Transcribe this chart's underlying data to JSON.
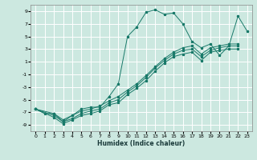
{
  "xlabel": "Humidex (Indice chaleur)",
  "background_color": "#cce8e0",
  "grid_color": "#ffffff",
  "line_color": "#1a7a6a",
  "xlim": [
    -0.5,
    23.5
  ],
  "ylim": [
    -10,
    10
  ],
  "xticks": [
    0,
    1,
    2,
    3,
    4,
    5,
    6,
    7,
    8,
    9,
    10,
    11,
    12,
    13,
    14,
    15,
    16,
    17,
    18,
    19,
    20,
    21,
    22,
    23
  ],
  "yticks": [
    -9,
    -7,
    -5,
    -3,
    -1,
    1,
    3,
    5,
    7,
    9
  ],
  "lines": [
    {
      "x": [
        0,
        1,
        2,
        3,
        4,
        5,
        6,
        7,
        8,
        9,
        10,
        11,
        12,
        13,
        14,
        15,
        16,
        17,
        18,
        19,
        20,
        21,
        22,
        23
      ],
      "y": [
        -6.5,
        -7.2,
        -7.2,
        -8.5,
        -7.5,
        -6.5,
        -6.2,
        -6.2,
        -4.5,
        -2.5,
        5.0,
        6.5,
        8.8,
        9.2,
        8.5,
        8.7,
        7.0,
        4.2,
        3.2,
        3.8,
        2.0,
        3.5,
        8.2,
        5.8
      ]
    },
    {
      "x": [
        0,
        2,
        3,
        4,
        5,
        6,
        7,
        8,
        9,
        10,
        11,
        12,
        13,
        14,
        15,
        16,
        17,
        18,
        19,
        20,
        21,
        22
      ],
      "y": [
        -6.5,
        -7.2,
        -8.2,
        -7.5,
        -6.8,
        -6.5,
        -6.0,
        -5.2,
        -4.5,
        -3.5,
        -2.5,
        -1.2,
        0.2,
        1.5,
        2.5,
        3.2,
        3.5,
        2.2,
        3.2,
        3.5,
        3.8,
        3.8
      ]
    },
    {
      "x": [
        0,
        2,
        3,
        4,
        5,
        6,
        7,
        8,
        9,
        10,
        11,
        12,
        13,
        14,
        15,
        16,
        17,
        18,
        19,
        20,
        21,
        22
      ],
      "y": [
        -6.5,
        -7.5,
        -8.5,
        -8.0,
        -7.2,
        -6.8,
        -6.5,
        -5.5,
        -5.0,
        -3.8,
        -2.8,
        -1.5,
        0.0,
        1.2,
        2.2,
        2.8,
        3.0,
        1.8,
        2.8,
        3.2,
        3.5,
        3.5
      ]
    },
    {
      "x": [
        0,
        2,
        3,
        4,
        5,
        6,
        7,
        8,
        9,
        10,
        11,
        12,
        13,
        14,
        15,
        16,
        17,
        18,
        19,
        20,
        21,
        22
      ],
      "y": [
        -6.5,
        -7.8,
        -8.8,
        -8.2,
        -7.5,
        -7.2,
        -6.8,
        -5.8,
        -5.5,
        -4.2,
        -3.2,
        -2.0,
        -0.5,
        0.8,
        1.8,
        2.2,
        2.5,
        1.2,
        2.5,
        2.8,
        3.0,
        3.0
      ]
    }
  ]
}
